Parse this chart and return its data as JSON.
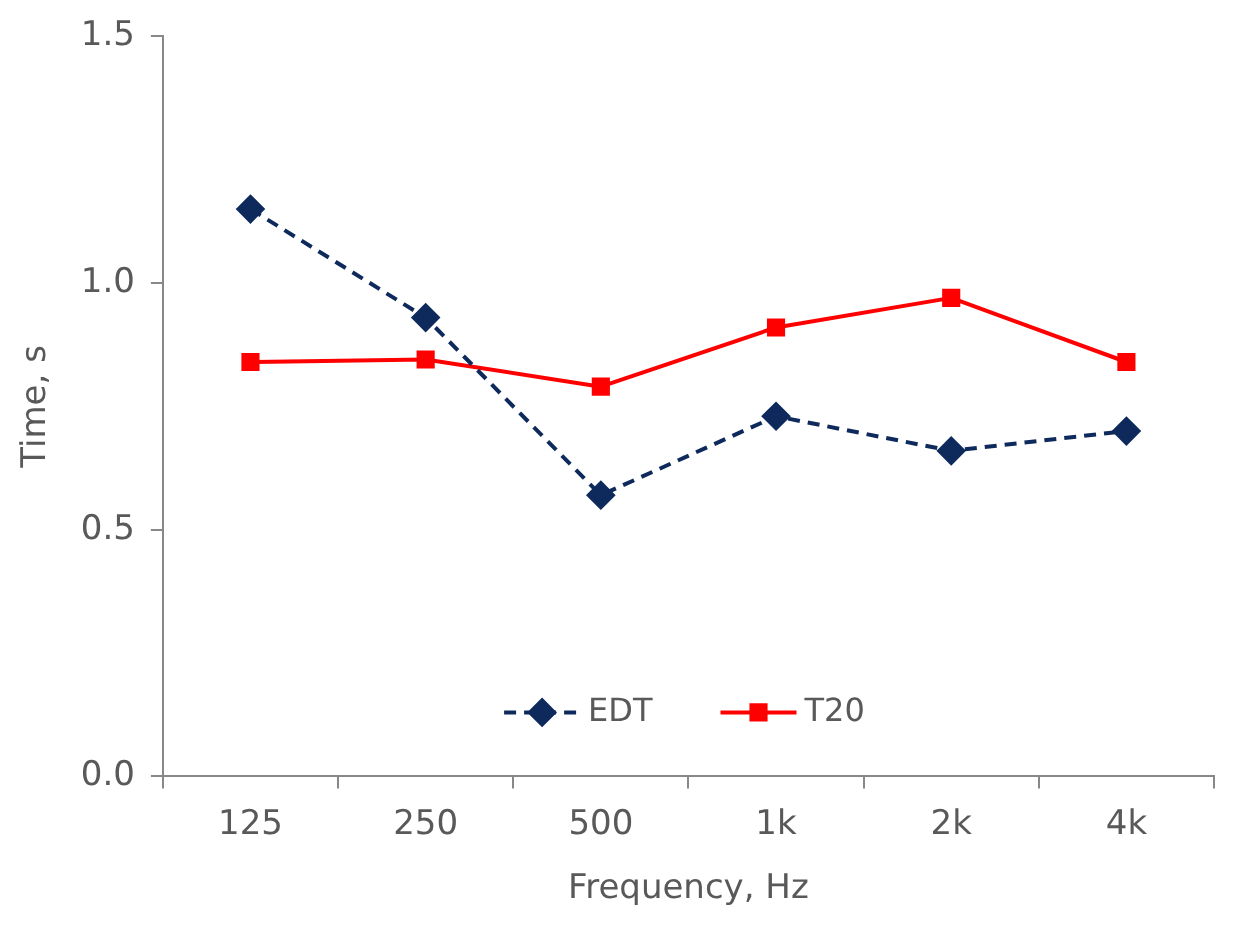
{
  "chart_data": {
    "type": "line",
    "xlabel": "Frequency, Hz",
    "ylabel": "Time, s",
    "categories": [
      "125",
      "250",
      "500",
      "1k",
      "2k",
      "4k"
    ],
    "series": [
      {
        "name": "EDT",
        "color": "#0e2a5c",
        "values": [
          1.15,
          0.93,
          0.57,
          0.73,
          0.66,
          0.7
        ],
        "marker": "diamond",
        "line_style": "dashed"
      },
      {
        "name": "T20",
        "color": "#ff0000",
        "values": [
          0.84,
          0.845,
          0.79,
          0.91,
          0.97,
          0.84
        ],
        "marker": "square",
        "line_style": "solid"
      }
    ],
    "ylim": [
      0,
      1.5
    ],
    "yticks": [
      {
        "value": 0,
        "label": "0.0"
      },
      {
        "value": 0.5,
        "label": "0.5"
      },
      {
        "value": 1,
        "label": "1.0"
      },
      {
        "value": 1.5,
        "label": "1.5"
      }
    ],
    "grid": false,
    "legend": "bottom"
  }
}
